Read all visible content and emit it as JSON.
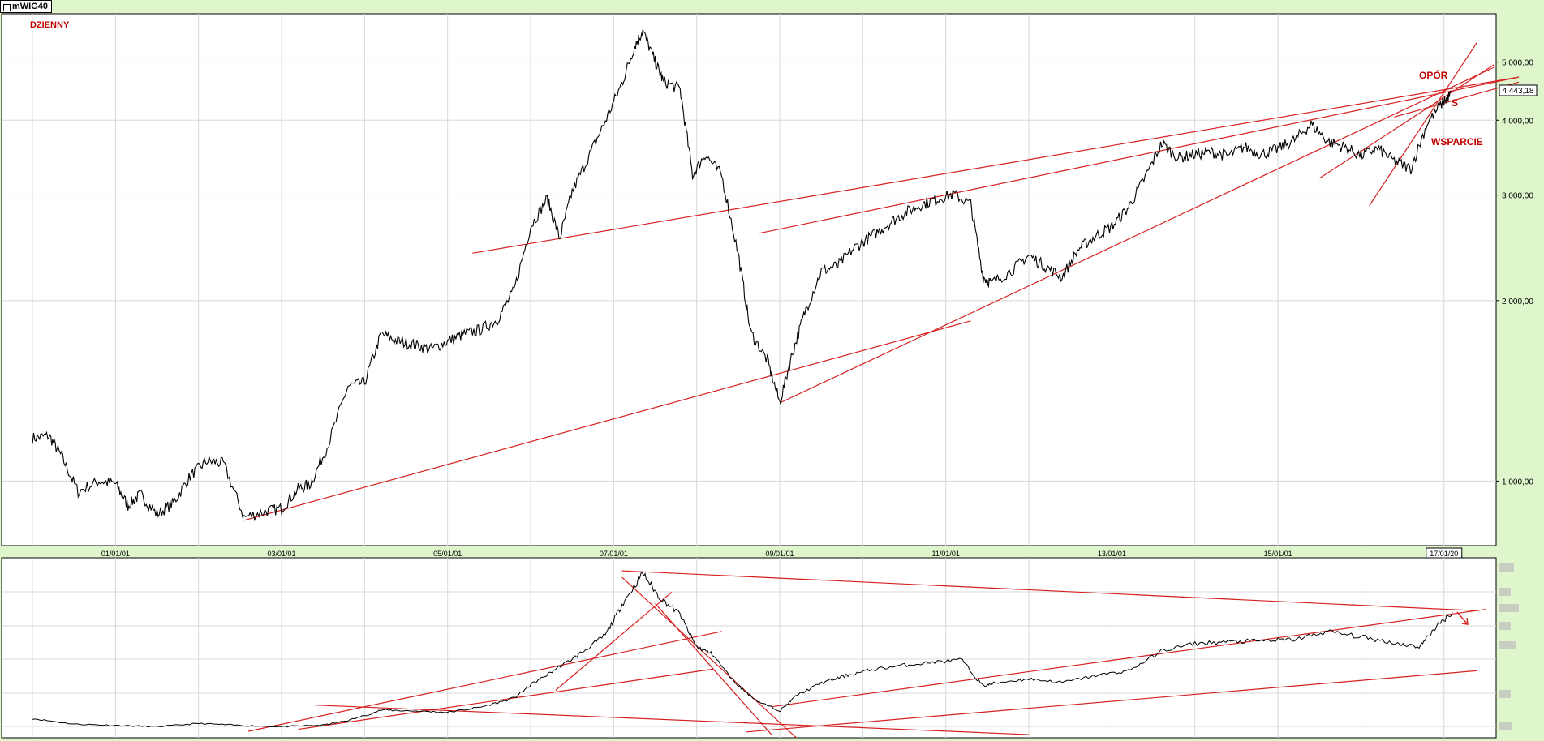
{
  "window": {
    "title": "mWIG40"
  },
  "annotations": {
    "timeframe": "DZIENNY",
    "resistance": "OPÓR",
    "support": "WSPARCIE",
    "s_mark": "S"
  },
  "colors": {
    "background": "#dff5cc",
    "plot": "#ffffff",
    "price": "#000000",
    "trendline": "#d62020",
    "annotation": "#c00000",
    "grid": "#d8d8d8"
  },
  "chart_data": [
    {
      "type": "line",
      "title": "mWIG40",
      "scale": "log",
      "ylim": [
        800,
        5800
      ],
      "y_ticks": [
        "1 000,00",
        "2 000,00",
        "3 000,00",
        "4 000,00",
        "5 000,00"
      ],
      "y_tick_values": [
        1000,
        2000,
        3000,
        4000,
        5000
      ],
      "x_tick_labels": [
        "01/01/01",
        "03/01/01",
        "05/01/01",
        "07/01/01",
        "09/01/01",
        "11/01/01",
        "13/01/01",
        "15/01/01",
        "17/01/20"
      ],
      "last_value_label": "4 443,18",
      "series": [
        {
          "x": [
            2000.0,
            2000.2,
            2000.35,
            2000.55,
            2000.8,
            2001.0,
            2001.15,
            2001.3,
            2001.5,
            2001.7,
            2001.9,
            2002.1,
            2002.3,
            2002.55,
            2002.8,
            2003.0,
            2003.2,
            2003.35,
            2003.55,
            2003.8,
            2004.0,
            2004.2,
            2004.4,
            2004.6,
            2004.8,
            2005.0,
            2005.2,
            2005.4,
            2005.6,
            2005.8,
            2006.0,
            2006.2,
            2006.35,
            2006.5,
            2006.7,
            2006.9,
            2007.1,
            2007.25,
            2007.35,
            2007.5,
            2007.6,
            2007.8,
            2007.95,
            2008.1,
            2008.3,
            2008.5,
            2008.65,
            2008.85,
            2009.0,
            2009.15,
            2009.3,
            2009.5,
            2009.7,
            2009.9,
            2010.1,
            2010.3,
            2010.5,
            2010.7,
            2010.9,
            2011.1,
            2011.3,
            2011.45,
            2011.55,
            2011.8,
            2012.0,
            2012.2,
            2012.4,
            2012.6,
            2012.8,
            2013.0,
            2013.2,
            2013.4,
            2013.6,
            2013.8,
            2014.0,
            2014.2,
            2014.4,
            2014.6,
            2014.8,
            2015.0,
            2015.2,
            2015.4,
            2015.6,
            2015.8,
            2016.0,
            2016.2,
            2016.4,
            2016.6,
            2016.8,
            2017.0,
            2017.1
          ],
          "values": [
            1180,
            1190,
            1100,
            960,
            1000,
            990,
            910,
            950,
            880,
            920,
            1020,
            1080,
            1070,
            870,
            890,
            900,
            970,
            990,
            1140,
            1440,
            1460,
            1760,
            1710,
            1690,
            1660,
            1710,
            1760,
            1790,
            1860,
            2080,
            2660,
            2960,
            2540,
            3040,
            3480,
            3990,
            4610,
            5310,
            5640,
            5010,
            4640,
            4510,
            3240,
            3510,
            3240,
            2390,
            1770,
            1590,
            1350,
            1630,
            1910,
            2240,
            2290,
            2450,
            2560,
            2680,
            2800,
            2890,
            2960,
            3010,
            2900,
            2190,
            2140,
            2250,
            2380,
            2280,
            2190,
            2440,
            2560,
            2660,
            2860,
            3210,
            3660,
            3460,
            3510,
            3540,
            3490,
            3610,
            3510,
            3580,
            3710,
            3940,
            3690,
            3610,
            3490,
            3590,
            3420,
            3320,
            3960,
            4310,
            4443
          ]
        }
      ]
    },
    {
      "type": "line",
      "title": "",
      "scale": "linear",
      "y_ticks": [],
      "series": [
        {
          "x": [
            2000.0,
            2000.5,
            2001.0,
            2001.5,
            2002.0,
            2002.5,
            2003.0,
            2003.5,
            2003.8,
            2004.2,
            2004.6,
            2005.0,
            2005.4,
            2005.8,
            2006.0,
            2006.3,
            2006.6,
            2006.9,
            2007.1,
            2007.35,
            2007.55,
            2007.8,
            2008.0,
            2008.2,
            2008.5,
            2008.75,
            2009.0,
            2009.2,
            2009.5,
            2009.8,
            2010.1,
            2010.5,
            2010.9,
            2011.2,
            2011.45,
            2011.6,
            2012.0,
            2012.4,
            2012.8,
            2013.2,
            2013.6,
            2014.0,
            2014.4,
            2014.8,
            2015.2,
            2015.6,
            2016.0,
            2016.4,
            2016.7,
            2016.9,
            2017.1
          ],
          "values": [
            1190,
            1020,
            980,
            940,
            1040,
            980,
            940,
            990,
            1130,
            1450,
            1420,
            1380,
            1540,
            1820,
            2220,
            2700,
            3180,
            3750,
            4680,
            5640,
            4900,
            4380,
            3380,
            3140,
            2200,
            1700,
            1430,
            1900,
            2280,
            2500,
            2680,
            2820,
            2920,
            2980,
            2180,
            2280,
            2400,
            2290,
            2500,
            2650,
            3260,
            3480,
            3530,
            3560,
            3600,
            3850,
            3680,
            3500,
            3380,
            3980,
            4443
          ]
        }
      ]
    }
  ]
}
